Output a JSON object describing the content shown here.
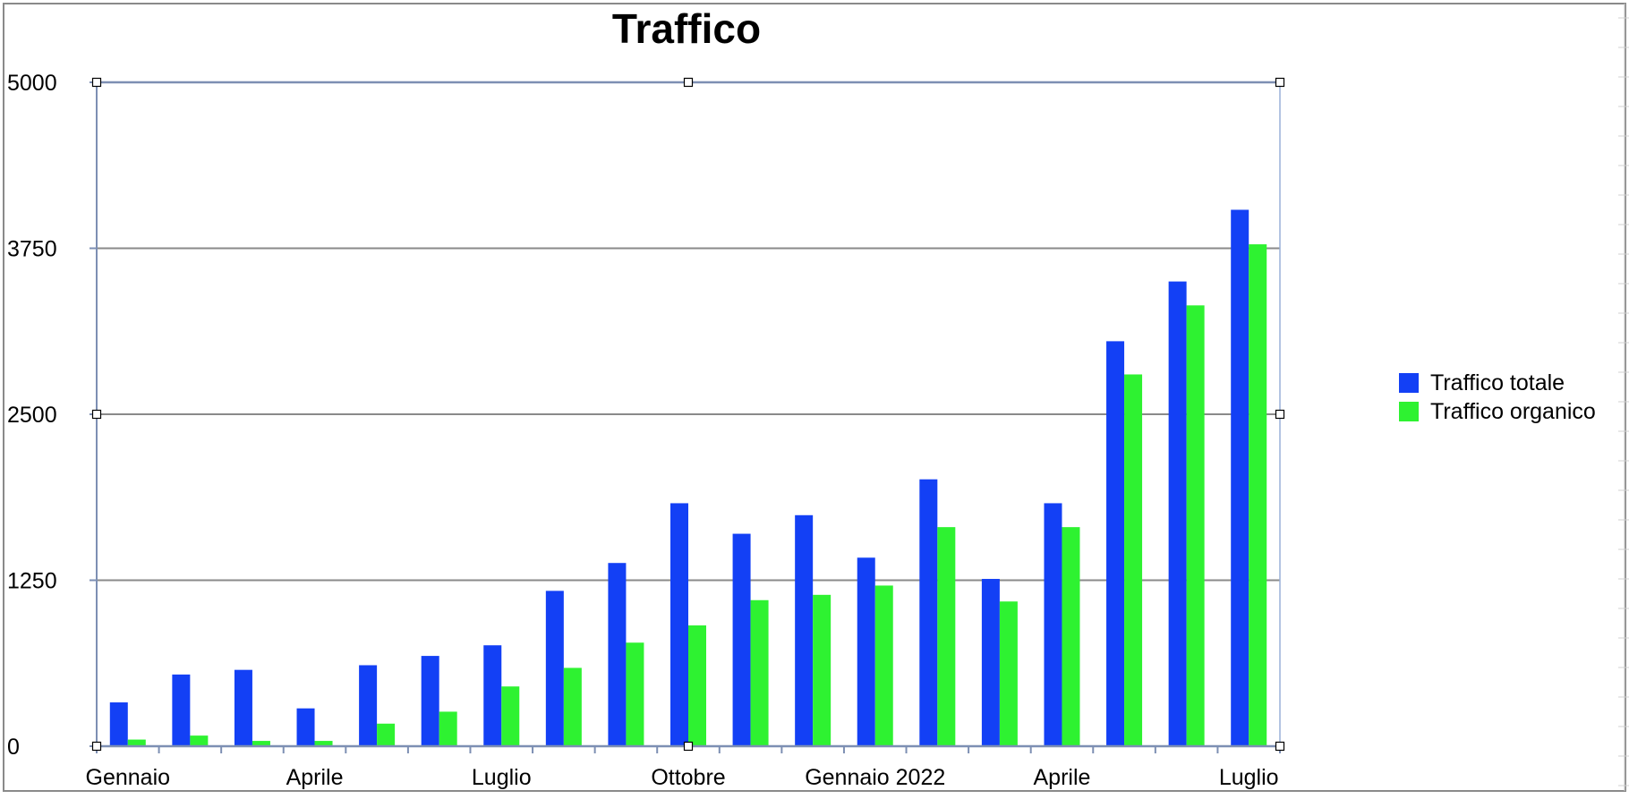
{
  "chart_data": {
    "type": "bar",
    "title": "Traffico",
    "xlabel": "",
    "ylabel": "",
    "ylim": [
      0,
      5000
    ],
    "yticks": [
      "0",
      "1250",
      "2500",
      "3750",
      "5000"
    ],
    "grid": true,
    "legend_position": "right",
    "categories": [
      "Gennaio",
      "",
      "",
      "Aprile",
      "",
      "",
      "Luglio",
      "",
      "",
      "Ottobre",
      "",
      "",
      "Gennaio 2022",
      "",
      "",
      "Aprile",
      "",
      "",
      "Luglio"
    ],
    "series": [
      {
        "name": "Traffico totale",
        "color": "#1340f5",
        "values": [
          330,
          540,
          575,
          285,
          610,
          680,
          760,
          1170,
          1380,
          1830,
          1600,
          1740,
          1420,
          2010,
          1260,
          1830,
          3050,
          3500,
          4040
        ]
      },
      {
        "name": "Traffico organico",
        "color": "#2ef231",
        "values": [
          50,
          80,
          40,
          40,
          170,
          260,
          450,
          590,
          780,
          910,
          1100,
          1140,
          1210,
          1650,
          1090,
          1650,
          2800,
          3320,
          3780
        ]
      }
    ]
  }
}
